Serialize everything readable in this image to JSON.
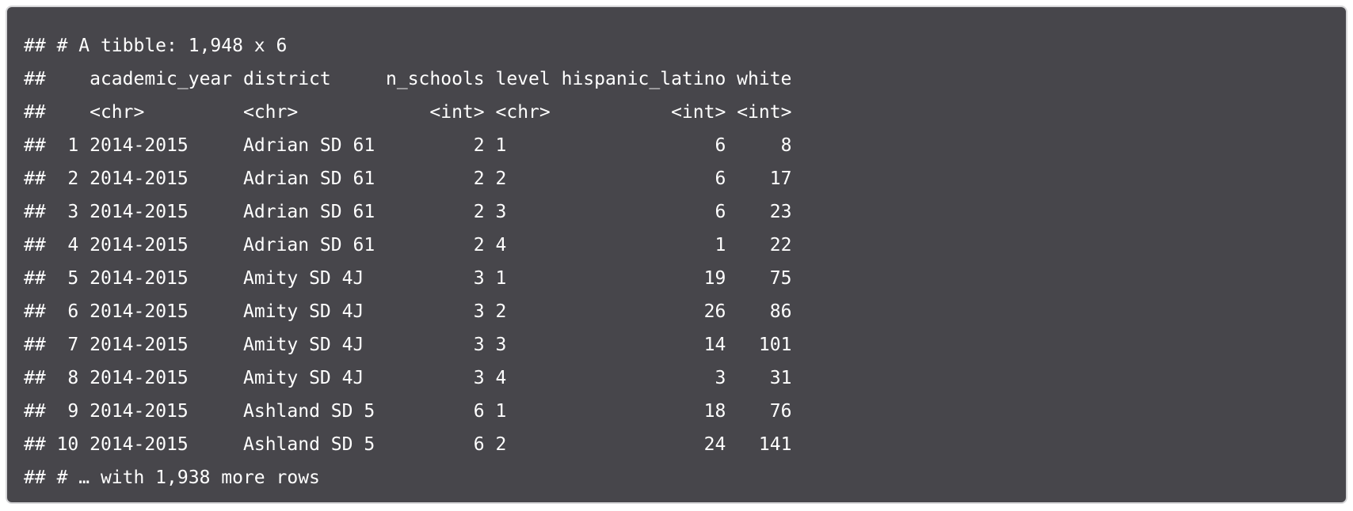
{
  "console": {
    "prompt": "##",
    "header": "# A tibble: 1,948 x 6",
    "columns": [
      "academic_year",
      "district",
      "n_schools",
      "level",
      "hispanic_latino",
      "white"
    ],
    "types": [
      "<chr>",
      "<chr>",
      "<int>",
      "<chr>",
      "<int>",
      "<int>"
    ],
    "rows": [
      {
        "index": "1",
        "academic_year": "2014-2015",
        "district": "Adrian SD 61",
        "n_schools": "2",
        "level": "1",
        "hispanic_latino": "6",
        "white": "8"
      },
      {
        "index": "2",
        "academic_year": "2014-2015",
        "district": "Adrian SD 61",
        "n_schools": "2",
        "level": "2",
        "hispanic_latino": "6",
        "white": "17"
      },
      {
        "index": "3",
        "academic_year": "2014-2015",
        "district": "Adrian SD 61",
        "n_schools": "2",
        "level": "3",
        "hispanic_latino": "6",
        "white": "23"
      },
      {
        "index": "4",
        "academic_year": "2014-2015",
        "district": "Adrian SD 61",
        "n_schools": "2",
        "level": "4",
        "hispanic_latino": "1",
        "white": "22"
      },
      {
        "index": "5",
        "academic_year": "2014-2015",
        "district": "Amity SD 4J",
        "n_schools": "3",
        "level": "1",
        "hispanic_latino": "19",
        "white": "75"
      },
      {
        "index": "6",
        "academic_year": "2014-2015",
        "district": "Amity SD 4J",
        "n_schools": "3",
        "level": "2",
        "hispanic_latino": "26",
        "white": "86"
      },
      {
        "index": "7",
        "academic_year": "2014-2015",
        "district": "Amity SD 4J",
        "n_schools": "3",
        "level": "3",
        "hispanic_latino": "14",
        "white": "101"
      },
      {
        "index": "8",
        "academic_year": "2014-2015",
        "district": "Amity SD 4J",
        "n_schools": "3",
        "level": "4",
        "hispanic_latino": "3",
        "white": "31"
      },
      {
        "index": "9",
        "academic_year": "2014-2015",
        "district": "Ashland SD 5",
        "n_schools": "6",
        "level": "1",
        "hispanic_latino": "18",
        "white": "76"
      },
      {
        "index": "10",
        "academic_year": "2014-2015",
        "district": "Ashland SD 5",
        "n_schools": "6",
        "level": "2",
        "hispanic_latino": "24",
        "white": "141"
      }
    ],
    "footer": "# … with 1,938 more rows"
  }
}
